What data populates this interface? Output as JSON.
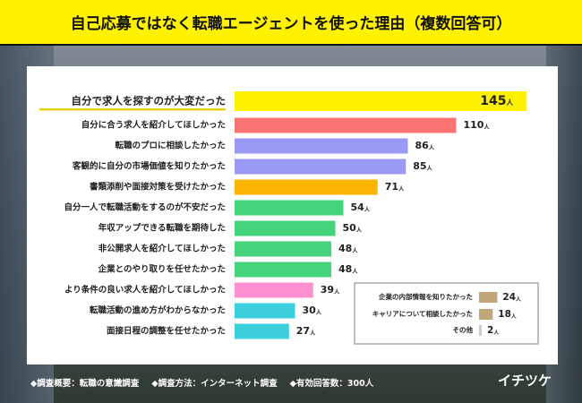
{
  "title": "自己応募ではなく転職エージェントを使った理由（複数回答可）",
  "chart_data": {
    "type": "bar",
    "orientation": "horizontal",
    "unit": "人",
    "categories": [
      "自分で求人を探すのが大変だった",
      "自分に合う求人を紹介してほしかった",
      "転職のプロに相談したかった",
      "客観的に自分の市場価値を知りたかった",
      "書類添削や面接対策を受けたかった",
      "自分一人で転職活動をするのが不安だった",
      "年収アップできる転職を期待した",
      "非公開求人を紹介してほしかった",
      "企業とのやり取りを任せたかった",
      "より条件の良い求人を紹介してほしかった",
      "転職活動の進め方がわからなかった",
      "面接日程の調整を任せたかった"
    ],
    "values": [
      145,
      110,
      86,
      85,
      71,
      54,
      50,
      48,
      48,
      39,
      30,
      27
    ],
    "colors": [
      "#fff200",
      "#fa7474",
      "#9a9af5",
      "#9a9af5",
      "#fbb500",
      "#45d47c",
      "#45d47c",
      "#45d47c",
      "#45d47c",
      "#ff90d2",
      "#3ccfdc",
      "#3ccfdc"
    ],
    "inset": {
      "categories": [
        "企業の内部情報を知りたかった",
        "キャリアについて相談したかった",
        "その他"
      ],
      "values": [
        24,
        18,
        2
      ],
      "colors": [
        "#c1a67a",
        "#c1a67a",
        "#cccccc"
      ]
    }
  },
  "footer": {
    "outline": "◆調査概要：転職の意識調査",
    "method": "◆調査方法：インターネット調査",
    "responses": "◆有効回答数：300人"
  },
  "logo": "イチツケ"
}
